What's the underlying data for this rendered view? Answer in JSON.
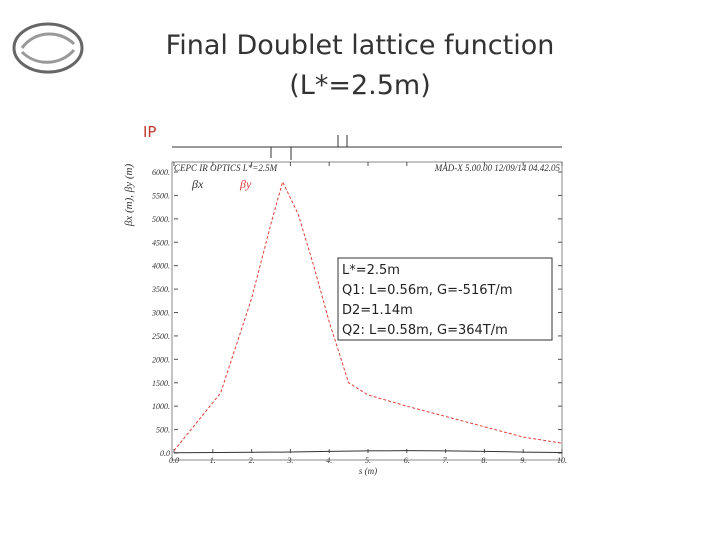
{
  "slide": {
    "title_lines": [
      "Final Doublet lattice function",
      "(L*=2.5m)"
    ],
    "ip_label": "IP",
    "box_lines": [
      "L*=2.5m",
      "Q1: L=0.56m, G=-516T/m",
      "D2=1.14m",
      "Q2: L=0.58m, G=364T/m"
    ]
  },
  "chart_data": {
    "type": "line",
    "title": "CEPC IR OPTICS L*=2.5M",
    "subtitle": "MAD-X 5.00.00  12/09/14 04.42.05",
    "x_label": "s (m)",
    "y_label": "βx (m), βy (m)",
    "x": [
      0,
      1.2,
      2,
      2.5,
      2.8,
      3.2,
      3.6,
      4,
      4.5,
      5,
      6,
      7,
      8,
      9,
      10
    ],
    "series": [
      {
        "name": "βx",
        "color": "#333333",
        "values": [
          5,
          10,
          15,
          20,
          20,
          25,
          30,
          35,
          40,
          45,
          50,
          45,
          35,
          20,
          10
        ]
      },
      {
        "name": "βy",
        "color": "#e0403a",
        "values": [
          50,
          1280,
          3300,
          4900,
          5790,
          5100,
          4000,
          2800,
          1500,
          1240,
          1000,
          780,
          560,
          340,
          210
        ]
      }
    ],
    "xlim": [
      0,
      10
    ],
    "ylim": [
      0,
      6000
    ],
    "xticks": [
      {
        "value": 0,
        "label": "0.0"
      },
      {
        "value": 1,
        "label": "1."
      },
      {
        "value": 2,
        "label": "2."
      },
      {
        "value": 3,
        "label": "3."
      },
      {
        "value": 4,
        "label": "4."
      },
      {
        "value": 5,
        "label": "5."
      },
      {
        "value": 6,
        "label": "6."
      },
      {
        "value": 7,
        "label": "7."
      },
      {
        "value": 8,
        "label": "8."
      },
      {
        "value": 9,
        "label": "9."
      },
      {
        "value": 10,
        "label": "10."
      }
    ],
    "yticks": [
      {
        "value": 0,
        "label": "0.0"
      },
      {
        "value": 500,
        "label": "500."
      },
      {
        "value": 1000,
        "label": "1000."
      },
      {
        "value": 1500,
        "label": "1500."
      },
      {
        "value": 2000,
        "label": "2000."
      },
      {
        "value": 2500,
        "label": "2500."
      },
      {
        "value": 3000,
        "label": "3000."
      },
      {
        "value": 3500,
        "label": "3500."
      },
      {
        "value": 4000,
        "label": "4000."
      },
      {
        "value": 4500,
        "label": "4500."
      },
      {
        "value": 5000,
        "label": "5000."
      },
      {
        "value": 5500,
        "label": "5500."
      },
      {
        "value": 6000,
        "label": "6000."
      }
    ],
    "grid": false
  }
}
